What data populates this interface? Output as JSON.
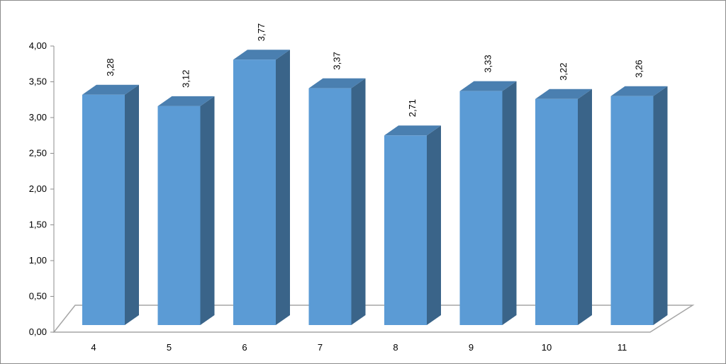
{
  "chart_data": {
    "type": "bar",
    "style": "3d-column",
    "categories": [
      "4",
      "5",
      "6",
      "7",
      "8",
      "9",
      "10",
      "11"
    ],
    "values": [
      3.28,
      3.12,
      3.77,
      3.37,
      2.71,
      3.33,
      3.22,
      3.26
    ],
    "data_labels": [
      "3,28",
      "3,12",
      "3,77",
      "3,37",
      "2,71",
      "3,33",
      "3,22",
      "3,26"
    ],
    "yticks": [
      "0,00",
      "0,50",
      "1,00",
      "1,50",
      "2,00",
      "2,50",
      "3,00",
      "3,50",
      "4,00"
    ],
    "ylim": [
      0,
      4
    ],
    "grid": false,
    "legend": "none",
    "colors": {
      "bar_front": "#5b9bd5",
      "bar_side": "#3a6489",
      "bar_top": "#4a7fb0",
      "floor": "#a6a6a6"
    }
  }
}
